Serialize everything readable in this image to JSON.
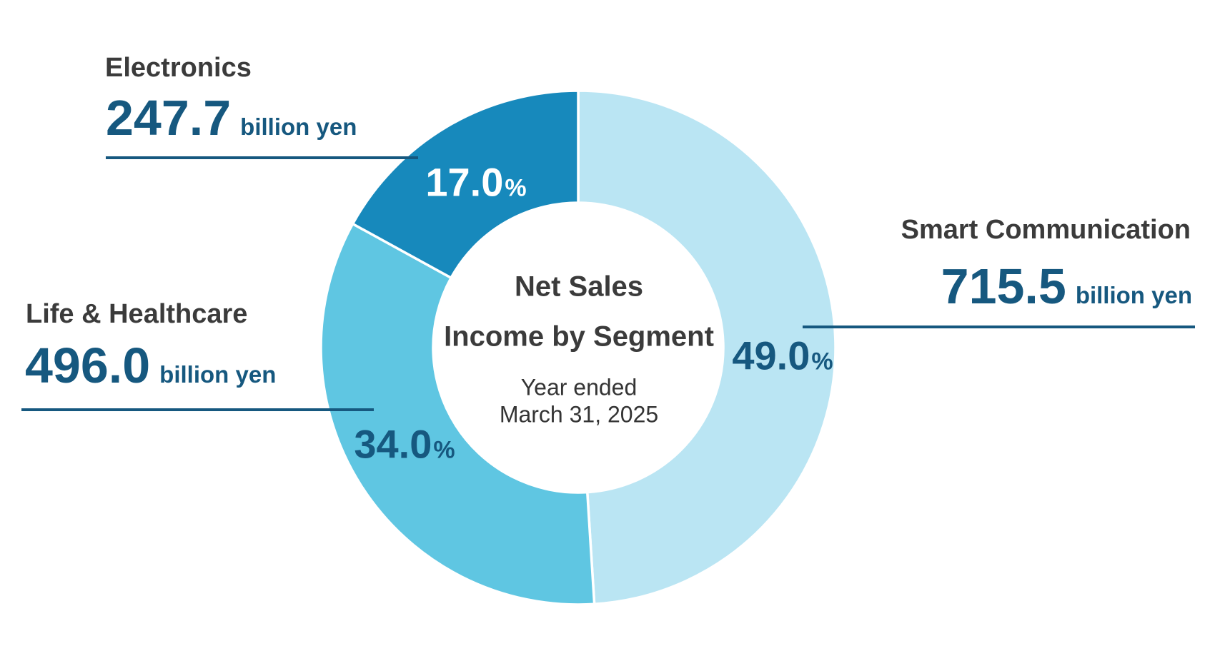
{
  "center": {
    "title_line1": "Net Sales",
    "title_line2": "Income by Segment",
    "subtitle_line1": "Year ended",
    "subtitle_line2": "March 31, 2025"
  },
  "callouts": {
    "electronics": {
      "name": "Electronics",
      "value": "247.7",
      "unit": "billion yen",
      "percent": "17.0",
      "percent_sign": "%"
    },
    "life_healthcare": {
      "name": "Life & Healthcare",
      "value": "496.0",
      "unit": "billion yen",
      "percent": "34.0",
      "percent_sign": "%"
    },
    "smart_communication": {
      "name": "Smart Communication",
      "value": "715.5",
      "unit": "billion yen",
      "percent": "49.0",
      "percent_sign": "%"
    }
  },
  "colors": {
    "smart_communication_segment": "#BAE5F3",
    "life_healthcare_segment": "#5FC6E2",
    "electronics_segment": "#1789BC",
    "accent_navy": "#16587F",
    "label_gray": "#3B3B3B",
    "separator_white": "#FFFFFF"
  },
  "chart_data": {
    "type": "pie",
    "variant": "donut",
    "title": "Net Sales Income by Segment",
    "subtitle": "Year ended March 31, 2025",
    "unit": "billion yen",
    "start_angle_deg": 0,
    "direction": "clockwise",
    "inner_radius_ratio": 0.565,
    "legend_position": "none",
    "segments": [
      {
        "label": "Smart Communication",
        "value": 715.5,
        "percent": 49.0,
        "color": "#BAE5F3"
      },
      {
        "label": "Life & Healthcare",
        "value": 496.0,
        "percent": 34.0,
        "color": "#5FC6E2"
      },
      {
        "label": "Electronics",
        "value": 247.7,
        "percent": 17.0,
        "color": "#1789BC"
      }
    ]
  }
}
